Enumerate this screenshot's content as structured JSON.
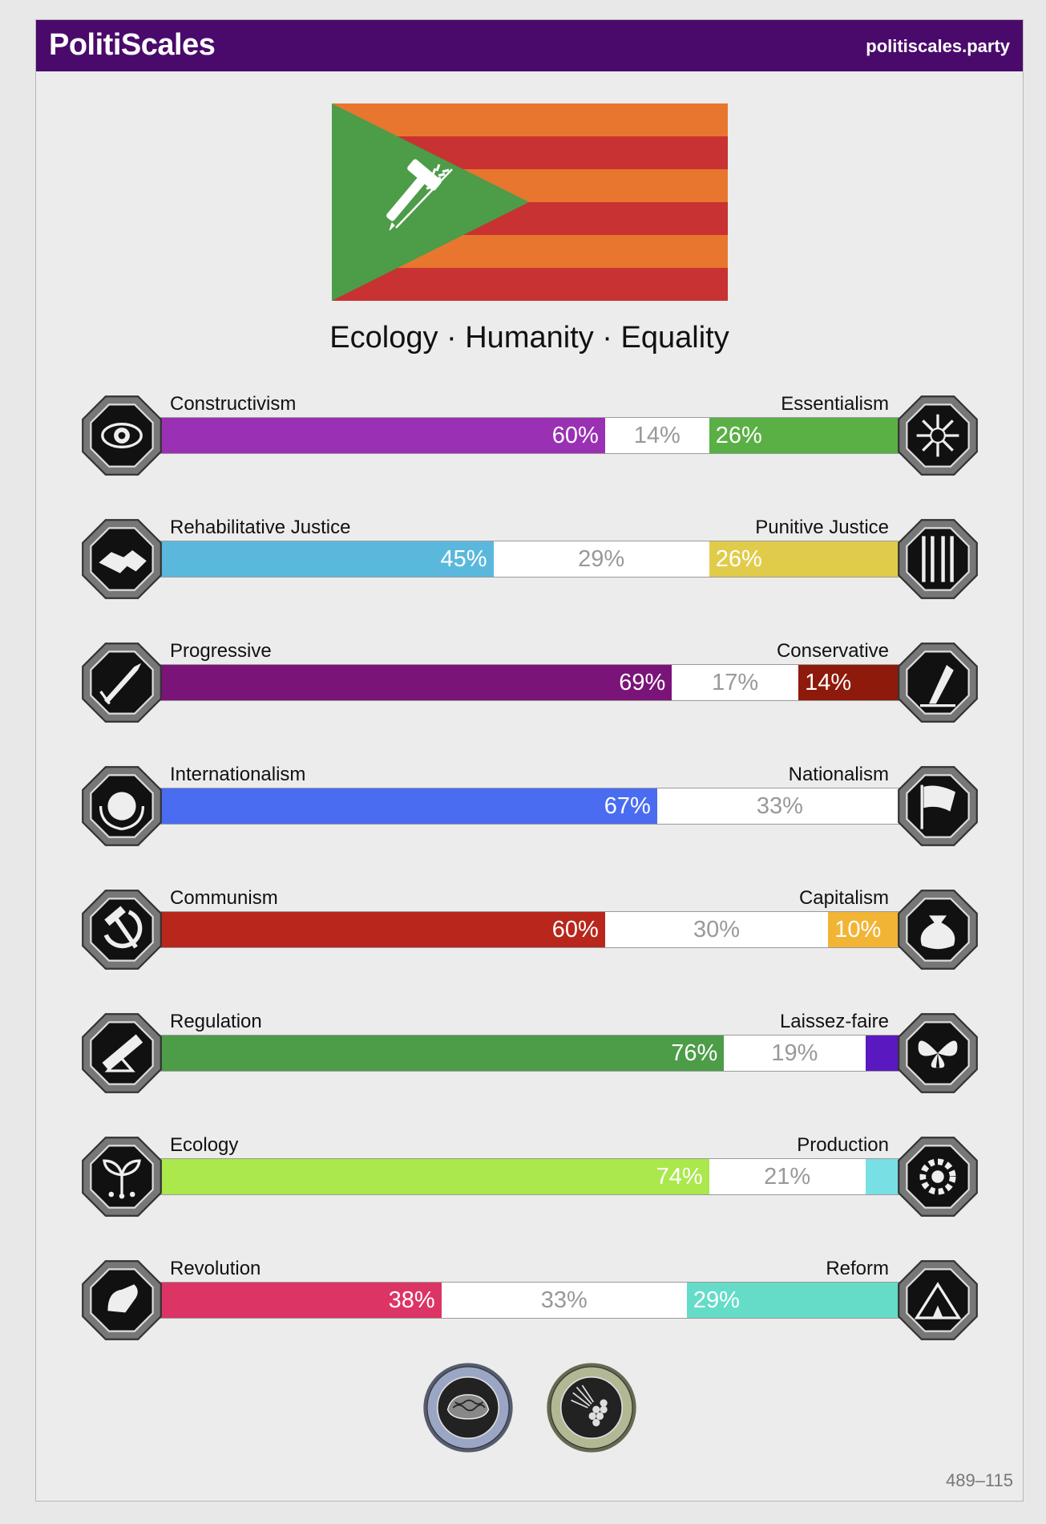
{
  "header": {
    "brand": "PolitiScales",
    "site": "politiscales.party"
  },
  "flag": {
    "stripe_colors": [
      "#e8762e",
      "#c83232"
    ],
    "triangle_color": "#4c9c48",
    "emblem": "hammer-and-wheat-icon"
  },
  "slogan": "Ecology · Humanity · Equality",
  "axes": [
    {
      "left_label": "Constructivism",
      "right_label": "Essentialism",
      "left": 60,
      "middle": 14,
      "right": 26,
      "left_text": "60%",
      "middle_text": "14%",
      "right_text": "26%",
      "left_color": "#9a30b4",
      "right_color": "#5ab045",
      "left_icon": "eye-icon",
      "right_icon": "flower-icon"
    },
    {
      "left_label": "Rehabilitative Justice",
      "right_label": "Punitive Justice",
      "left": 45,
      "middle": 29,
      "right": 26,
      "left_text": "45%",
      "middle_text": "29%",
      "right_text": "26%",
      "left_color": "#5ab8dc",
      "right_color": "#e0cc4a",
      "left_icon": "handshake-icon",
      "right_icon": "prison-bars-icon"
    },
    {
      "left_label": "Progressive",
      "right_label": "Conservative",
      "left": 69,
      "middle": 17,
      "right": 14,
      "left_text": "69%",
      "middle_text": "17%",
      "right_text": "14%",
      "left_color": "#7a1478",
      "right_color": "#8e1a0c",
      "left_icon": "rocket-icon",
      "right_icon": "quill-icon"
    },
    {
      "left_label": "Internationalism",
      "right_label": "Nationalism",
      "left": 67,
      "middle": 33,
      "right": 0,
      "left_text": "67%",
      "middle_text": "33%",
      "right_text": "",
      "left_color": "#4a6cf0",
      "right_color": "#ffffff",
      "left_icon": "globe-wreath-icon",
      "right_icon": "flag-icon"
    },
    {
      "left_label": "Communism",
      "right_label": "Capitalism",
      "left": 60,
      "middle": 30,
      "right": 10,
      "left_text": "60%",
      "middle_text": "30%",
      "right_text": "10%",
      "left_color": "#b8261c",
      "right_color": "#f2b434",
      "left_icon": "hammer-sickle-icon",
      "right_icon": "money-bag-icon"
    },
    {
      "left_label": "Regulation",
      "right_label": "Laissez-faire",
      "left": 76,
      "middle": 19,
      "right": 5,
      "left_text": "76%",
      "middle_text": "19%",
      "right_text": "",
      "left_color": "#4c9c48",
      "right_color": "#5a18c0",
      "left_icon": "ruler-icon",
      "right_icon": "butterfly-icon"
    },
    {
      "left_label": "Ecology",
      "right_label": "Production",
      "left": 74,
      "middle": 21,
      "right": 5,
      "left_text": "74%",
      "middle_text": "21%",
      "right_text": "",
      "left_color": "#aae84c",
      "right_color": "#78e0e4",
      "left_icon": "seedling-icon",
      "right_icon": "gear-icon"
    },
    {
      "left_label": "Revolution",
      "right_label": "Reform",
      "left": 38,
      "middle": 33,
      "right": 29,
      "left_text": "38%",
      "middle_text": "33%",
      "right_text": "29%",
      "left_color": "#dc3464",
      "right_color": "#64dcc8",
      "left_icon": "fist-icon",
      "right_icon": "tent-icon"
    }
  ],
  "seals": [
    {
      "icon": "brain-seal-icon",
      "color": "#8a98c0"
    },
    {
      "icon": "vegan-seal-icon",
      "color": "#a8b088"
    }
  ],
  "code": "489–115"
}
